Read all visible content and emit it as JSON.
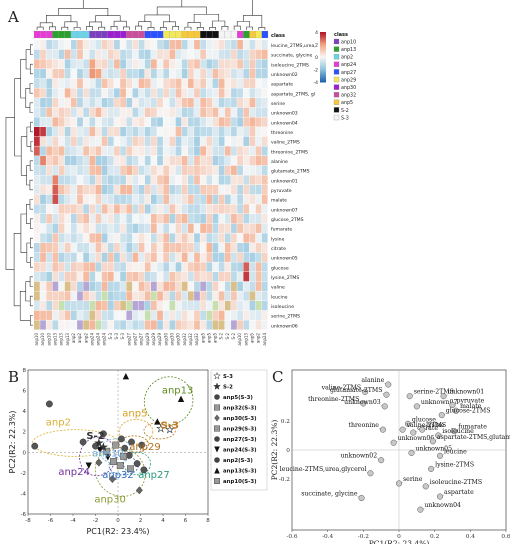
{
  "panels": {
    "a": "A",
    "b": "B",
    "c": "C"
  },
  "heatmap": {
    "colorbar_scale_labels": [
      "4",
      "2",
      "0",
      "-2",
      "-4"
    ],
    "class_title": "class",
    "class_bar_label": "class",
    "class_legend": [
      {
        "name": "anp10",
        "color": "#7b3fbf"
      },
      {
        "name": "anp13",
        "color": "#2ca02c"
      },
      {
        "name": "anp2",
        "color": "#6bd4e8"
      },
      {
        "name": "anp24",
        "color": "#e63cd6"
      },
      {
        "name": "anp27",
        "color": "#2b50ff"
      },
      {
        "name": "anp29",
        "color": "#f2e85a"
      },
      {
        "name": "anp30",
        "color": "#9b1fd0"
      },
      {
        "name": "anp32",
        "color": "#c94f9e"
      },
      {
        "name": "anp5",
        "color": "#f7c93a"
      },
      {
        "name": "S-2",
        "color": "#111111"
      },
      {
        "name": "S-3",
        "color": "#f4f4f4"
      }
    ],
    "row_labels": [
      "leucine_2TMS,urea,",
      "succinate, glycine",
      "isoleucine_2TMS",
      "unknown02",
      "aspartate",
      "aspartate_2TMS, gl",
      "serine",
      "unknown03",
      "unknown04",
      "threonine",
      "valine_2TMS",
      "threonine_2TMS",
      "alanine",
      "glutamate_2TMS",
      "unknown01",
      "pyruvate",
      "malate",
      "unknown07",
      "glucose_2TMS",
      "fumarate",
      "lysine",
      "citrate",
      "unknown05",
      "glucose",
      "lysine_2TMS",
      "valine",
      "leucine",
      "isoleucine",
      "serine_2TMS",
      "unknown06"
    ],
    "column_labels": [
      "anp10",
      "anp10",
      "anp10",
      "anp13",
      "anp13",
      "anp13",
      "anp2",
      "anp2",
      "anp2",
      "anp24",
      "anp24",
      "anp24",
      "S-3",
      "S-3",
      "S-3",
      "anp27",
      "anp27",
      "anp27",
      "anp29",
      "anp29",
      "anp29",
      "anp30",
      "anp30",
      "anp30",
      "anp32",
      "anp32",
      "anp32",
      "anp5",
      "anp5",
      "anp5",
      "S-2",
      "S-2",
      "S-2",
      "anp10",
      "anp13",
      "anp5",
      "anp2",
      "anp24"
    ],
    "column_class_order": [
      "anp24",
      "anp24",
      "anp24",
      "anp13",
      "anp13",
      "anp13",
      "anp2",
      "anp2",
      "anp2",
      "anp10",
      "anp10",
      "anp10",
      "anp30",
      "anp30",
      "anp30",
      "anp32",
      "anp32",
      "anp32",
      "anp27",
      "anp27",
      "anp27",
      "anp29",
      "anp29",
      "anp29",
      "anp5",
      "anp5",
      "anp5",
      "S-2",
      "S-2",
      "S-2",
      "S-3",
      "S-3",
      "S-3",
      "anp24",
      "anp13",
      "anp5",
      "anp29",
      "anp27"
    ]
  },
  "chart_data": [
    {
      "type": "scatter",
      "panel": "B",
      "xlabel": "PC1(R2: 23.4%)",
      "ylabel": "PC2(R2: 22.3%)",
      "xlim": [
        -8,
        8
      ],
      "ylim": [
        -6,
        8
      ],
      "xticks": [
        "-8",
        "-6",
        "-4",
        "-2",
        "0",
        "2",
        "4",
        "6",
        "8"
      ],
      "yticks": [
        "8",
        "6",
        "4",
        "2",
        "0",
        "-2",
        "-4",
        "-6"
      ],
      "legend": [
        "S-3",
        "S-2",
        "anp5(S-3)",
        "anp32(S-3)",
        "anp30(S-3)",
        "anp29(S-3)",
        "anp27(S-3)",
        "anp24(S-3)",
        "anp2(S-3)",
        "anp13(S-3)",
        "anp10(S-3)"
      ],
      "group_labels": [
        {
          "text": "anp13",
          "x": 5.3,
          "y": 5.7,
          "color": "#5c8a1e"
        },
        {
          "text": "anp5",
          "x": 1.5,
          "y": 3.5,
          "color": "#d8a020"
        },
        {
          "text": "S-3",
          "x": 4.6,
          "y": 2.3,
          "color": "#c07a20"
        },
        {
          "text": "anp2",
          "x": -5.3,
          "y": 2.6,
          "color": "#d8b030"
        },
        {
          "text": "S-2",
          "x": -2.0,
          "y": 1.3,
          "color": "#333333"
        },
        {
          "text": "anp29",
          "x": 2.4,
          "y": 0.2,
          "color": "#b07020"
        },
        {
          "text": "anp10",
          "x": -0.9,
          "y": -0.4,
          "color": "#6bb0e0"
        },
        {
          "text": "anp24",
          "x": -3.9,
          "y": -2.2,
          "color": "#7030a0"
        },
        {
          "text": "anp32",
          "x": 0.0,
          "y": -2.5,
          "color": "#3070c0"
        },
        {
          "text": "anp27",
          "x": 3.2,
          "y": -2.5,
          "color": "#2a9a7a"
        },
        {
          "text": "anp30",
          "x": -0.7,
          "y": -4.9,
          "color": "#8a9a30"
        }
      ],
      "points": [
        {
          "group": "anp5",
          "marker": "circle",
          "x": -6.1,
          "y": 4.7
        },
        {
          "group": "anp5",
          "marker": "circle",
          "x": -1.3,
          "y": 1.8
        },
        {
          "group": "anp5",
          "marker": "circle",
          "x": 0.6,
          "y": 0.4
        },
        {
          "group": "anp32",
          "marker": "square",
          "x": -0.4,
          "y": -0.9
        },
        {
          "group": "anp32",
          "marker": "square",
          "x": 0.2,
          "y": -1.3
        },
        {
          "group": "anp32",
          "marker": "square",
          "x": 1.1,
          "y": -1.6
        },
        {
          "group": "anp30",
          "marker": "diamond",
          "x": -0.5,
          "y": -2.6
        },
        {
          "group": "anp30",
          "marker": "diamond",
          "x": 1.9,
          "y": -3.7
        },
        {
          "group": "anp30",
          "marker": "diamond",
          "x": -1.7,
          "y": -1.0
        },
        {
          "group": "anp29",
          "marker": "circle",
          "x": 1.2,
          "y": 1.0
        },
        {
          "group": "anp29",
          "marker": "circle",
          "x": 2.1,
          "y": 0.7
        },
        {
          "group": "anp29",
          "marker": "circle",
          "x": 0.3,
          "y": 1.3
        },
        {
          "group": "anp27",
          "marker": "circle",
          "x": 2.3,
          "y": -1.7
        },
        {
          "group": "anp27",
          "marker": "circle",
          "x": 1.0,
          "y": -0.3
        },
        {
          "group": "anp27",
          "marker": "circle",
          "x": 1.7,
          "y": -1.1
        },
        {
          "group": "anp24",
          "marker": "tri-down",
          "x": -2.6,
          "y": -1.3
        },
        {
          "group": "anp24",
          "marker": "tri-down",
          "x": -1.6,
          "y": 0.2
        },
        {
          "group": "anp24",
          "marker": "tri-down",
          "x": -0.9,
          "y": -0.5
        },
        {
          "group": "anp2",
          "marker": "circle",
          "x": -7.4,
          "y": 0.6
        },
        {
          "group": "anp2",
          "marker": "circle",
          "x": -3.1,
          "y": 1.0
        },
        {
          "group": "anp2",
          "marker": "circle",
          "x": -2.0,
          "y": 0.6
        },
        {
          "group": "anp13",
          "marker": "tri-up",
          "x": 0.7,
          "y": 7.4
        },
        {
          "group": "anp13",
          "marker": "tri-up",
          "x": 3.5,
          "y": 3.0
        },
        {
          "group": "anp13",
          "marker": "tri-up",
          "x": 5.6,
          "y": 5.2
        },
        {
          "group": "anp10",
          "marker": "square",
          "x": -1.0,
          "y": 0.1
        },
        {
          "group": "anp10",
          "marker": "square",
          "x": -0.2,
          "y": 0.7
        },
        {
          "group": "anp10",
          "marker": "square",
          "x": 0.5,
          "y": -0.4
        },
        {
          "group": "S-3",
          "marker": "star-open",
          "x": 3.8,
          "y": 2.3
        },
        {
          "group": "S-3",
          "marker": "star-open",
          "x": 4.6,
          "y": 2.2
        },
        {
          "group": "S-2",
          "marker": "star-filled",
          "x": -1.7,
          "y": 0.9
        },
        {
          "group": "S-2",
          "marker": "star-filled",
          "x": -1.3,
          "y": 0.5
        }
      ]
    },
    {
      "type": "scatter",
      "panel": "C",
      "xlabel": "PC1(R2: 23.4%)",
      "ylabel": "PC2(R2: 22.3%)",
      "xlim": [
        -0.6,
        0.6
      ],
      "ylim": [
        -0.55,
        0.55
      ],
      "xticks": [
        "-0.6",
        "-0.4",
        "-0.2",
        "0",
        "0.2",
        "0.4",
        "0.6"
      ],
      "yticks": [
        "0.2",
        "0",
        "-0.2"
      ],
      "points": [
        {
          "label": "alanine",
          "x": -0.06,
          "y": 0.45
        },
        {
          "label": "valine-2TMS",
          "x": -0.19,
          "y": 0.4
        },
        {
          "label": "glutamate-2TMS",
          "x": -0.07,
          "y": 0.38
        },
        {
          "label": "serine-2TMS",
          "x": 0.06,
          "y": 0.37
        },
        {
          "label": "unknown01",
          "x": 0.25,
          "y": 0.37
        },
        {
          "label": "threonine-2TMS",
          "x": -0.2,
          "y": 0.32
        },
        {
          "label": "unknown03",
          "x": -0.08,
          "y": 0.3
        },
        {
          "label": "unknown07",
          "x": 0.1,
          "y": 0.3
        },
        {
          "label": "pyruvate",
          "x": 0.3,
          "y": 0.31
        },
        {
          "label": "malate",
          "x": 0.32,
          "y": 0.27
        },
        {
          "label": "glucose-2TMS",
          "x": 0.24,
          "y": 0.24
        },
        {
          "label": "glucose",
          "x": 0.05,
          "y": 0.18
        },
        {
          "label": "threonine",
          "x": -0.09,
          "y": 0.14
        },
        {
          "label": "valine-2TMS",
          "x": 0.02,
          "y": 0.14
        },
        {
          "label": "citrate",
          "x": 0.08,
          "y": 0.12
        },
        {
          "label": "lysine",
          "x": 0.13,
          "y": 0.14
        },
        {
          "label": "fumarate",
          "x": 0.31,
          "y": 0.13
        },
        {
          "label": "isoleucine",
          "x": 0.22,
          "y": 0.1
        },
        {
          "label": "unknown06",
          "x": -0.03,
          "y": 0.05
        },
        {
          "label": "aspartate-2TMS,glutamate",
          "x": 0.19,
          "y": 0.06
        },
        {
          "label": "unknown05",
          "x": 0.07,
          "y": -0.02
        },
        {
          "label": "leucine",
          "x": 0.23,
          "y": -0.04
        },
        {
          "label": "unknown02",
          "x": -0.1,
          "y": -0.07
        },
        {
          "label": "lysine-2TMS",
          "x": 0.18,
          "y": -0.13
        },
        {
          "label": "leucine-2TMS,urea,glycerol",
          "x": -0.16,
          "y": -0.16
        },
        {
          "label": "serine",
          "x": 0.0,
          "y": -0.23
        },
        {
          "label": "isoleucine-2TMS",
          "x": 0.15,
          "y": -0.25
        },
        {
          "label": "aspartate",
          "x": 0.23,
          "y": -0.32
        },
        {
          "label": "succinate, glycine",
          "x": -0.21,
          "y": -0.33
        },
        {
          "label": "unknown04",
          "x": 0.12,
          "y": -0.41
        }
      ]
    }
  ]
}
